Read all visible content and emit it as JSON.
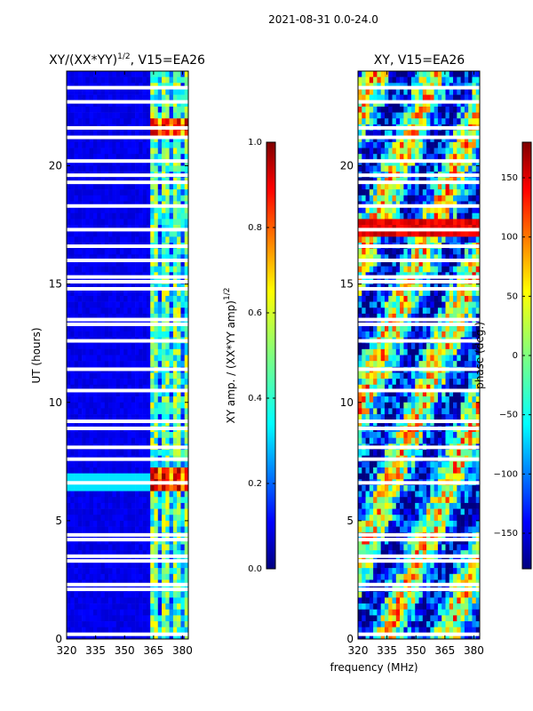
{
  "page_title": "2021-08-31 0.0-24.0",
  "x_label": "frequency (MHz)",
  "chart_data": [
    {
      "type": "heatmap",
      "title": "XY/(XX*YY)^1/2, V15=EA26",
      "title_main": "XY/(XX*YY)",
      "title_sup": "1/2",
      "title_tail": ", V15=EA26",
      "xlabel": "frequency (MHz)",
      "ylabel": "UT (hours)",
      "xlim": [
        320,
        383
      ],
      "ylim": [
        0,
        24
      ],
      "xticks": [
        320,
        335,
        350,
        365,
        380
      ],
      "yticks": [
        0,
        5,
        10,
        15,
        20
      ],
      "colorbar": {
        "label": "XY amp. / (XX*YY amp)^1/2",
        "label_main": "XY amp. / (XX*YY amp)",
        "label_sup": "1/2",
        "range": [
          0.0,
          1.0
        ],
        "ticks": [
          "0.0",
          "0.2",
          "0.4",
          "0.6",
          "0.8",
          "1.0"
        ],
        "tick_values": [
          0.0,
          0.2,
          0.4,
          0.6,
          0.8,
          1.0
        ]
      }
    },
    {
      "type": "heatmap",
      "title": "XY, V15=EA26",
      "xlabel": "frequency (MHz)",
      "ylabel": "",
      "xlim": [
        320,
        383
      ],
      "ylim": [
        0,
        24
      ],
      "xticks": [
        320,
        335,
        350,
        365,
        380
      ],
      "yticks": [
        0,
        5,
        10,
        15,
        20
      ],
      "colorbar": {
        "label": "phase (deg.)",
        "range": [
          -180,
          180
        ],
        "ticks": [
          "−150",
          "−100",
          "−50",
          "0",
          "50",
          "100",
          "150"
        ],
        "tick_values": [
          -150,
          -100,
          -50,
          0,
          50,
          100,
          150
        ]
      }
    }
  ],
  "colors": {
    "jet": [
      "#00007f",
      "#0000ff",
      "#007fff",
      "#00ffff",
      "#7fff7f",
      "#ffff00",
      "#ff7f00",
      "#ff0000",
      "#7f0000"
    ],
    "gap": "#ffffff"
  }
}
